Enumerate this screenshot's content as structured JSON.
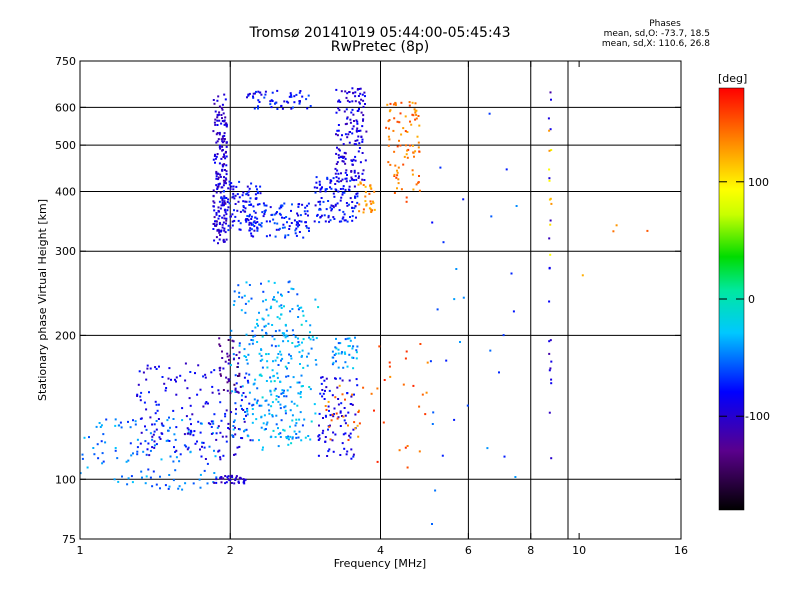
{
  "chart_data": {
    "type": "scatter",
    "title": "Tromsø 20141019 05:44:00-05:45:43",
    "subtitle": "RwPretec (8p)",
    "xlabel": "Frequency [MHz]",
    "ylabel": "Stationary phase Virtual Height [km]",
    "x_scale": "log",
    "y_scale": "log",
    "xlim": [
      1,
      16
    ],
    "ylim": [
      75,
      750
    ],
    "x_ticks": [
      1,
      2,
      4,
      6,
      8,
      10,
      16
    ],
    "y_ticks": [
      75,
      100,
      200,
      300,
      400,
      500,
      600,
      750
    ],
    "x_gridlines": [
      2,
      4,
      6,
      8,
      9.5
    ],
    "y_gridlines": [
      100,
      200,
      300,
      400,
      500,
      600
    ],
    "colorbar": {
      "label": "[deg]",
      "ticks": [
        100,
        0,
        -100
      ],
      "range": [
        -180,
        180
      ],
      "colormap": "rainbow"
    },
    "phases": {
      "heading": "Phases",
      "line_o": "mean, sd,O: -73.7, 18.5",
      "line_x": "mean, sd,X: 110.6, 26.8"
    },
    "clusters": [
      {
        "f": [
          1.85,
          1.97
        ],
        "h": [
          310,
          640
        ],
        "p": -100,
        "n": 180
      },
      {
        "f": [
          1.9,
          2.3
        ],
        "h": [
          330,
          420
        ],
        "p": -85,
        "n": 120
      },
      {
        "f": [
          2.15,
          2.9
        ],
        "h": [
          320,
          380
        ],
        "p": -75,
        "n": 110
      },
      {
        "f": [
          2.15,
          2.9
        ],
        "h": [
          595,
          650
        ],
        "p": -80,
        "n": 60
      },
      {
        "f": [
          2.95,
          3.6
        ],
        "h": [
          345,
          430
        ],
        "p": -80,
        "n": 120
      },
      {
        "f": [
          3.25,
          3.75
        ],
        "h": [
          420,
          660
        ],
        "p": -95,
        "n": 150
      },
      {
        "f": [
          3.6,
          3.9
        ],
        "h": [
          360,
          420
        ],
        "p": 130,
        "n": 30
      },
      {
        "f": [
          4.1,
          4.8
        ],
        "h": [
          380,
          620
        ],
        "p": 140,
        "n": 90
      },
      {
        "f": [
          1.0,
          1.9
        ],
        "h": [
          95,
          135
        ],
        "p": -50,
        "n": 130
      },
      {
        "f": [
          1.3,
          2.2
        ],
        "h": [
          110,
          175
        ],
        "p": -90,
        "n": 170
      },
      {
        "f": [
          2.0,
          2.8
        ],
        "h": [
          120,
          260
        ],
        "p": -45,
        "n": 220
      },
      {
        "f": [
          2.3,
          3.0
        ],
        "h": [
          115,
          240
        ],
        "p": -30,
        "n": 120
      },
      {
        "f": [
          1.85,
          2.15
        ],
        "h": [
          98,
          102
        ],
        "p": -100,
        "n": 40
      },
      {
        "f": [
          1.9,
          2.1
        ],
        "h": [
          150,
          200
        ],
        "p": -125,
        "n": 40
      },
      {
        "f": [
          3.0,
          3.6
        ],
        "h": [
          110,
          165
        ],
        "p": -90,
        "n": 90
      },
      {
        "f": [
          3.1,
          3.7
        ],
        "h": [
          120,
          160
        ],
        "p": 140,
        "n": 25
      },
      {
        "f": [
          3.2,
          3.6
        ],
        "h": [
          170,
          200
        ],
        "p": -40,
        "n": 40
      },
      {
        "f": [
          3.8,
          5.0
        ],
        "h": [
          100,
          200
        ],
        "p": 150,
        "n": 25
      },
      {
        "f": [
          5.0,
          7.5
        ],
        "h": [
          80,
          600
        ],
        "p": -60,
        "n": 30
      },
      {
        "f": [
          8.7,
          8.8
        ],
        "h": [
          100,
          650
        ],
        "p": -100,
        "n": 20
      },
      {
        "f": [
          8.7,
          8.8
        ],
        "h": [
          270,
          560
        ],
        "p": 110,
        "n": 10
      },
      {
        "f": [
          9.0,
          14.0
        ],
        "h": [
          260,
          450
        ],
        "p": 135,
        "n": 4
      }
    ]
  }
}
